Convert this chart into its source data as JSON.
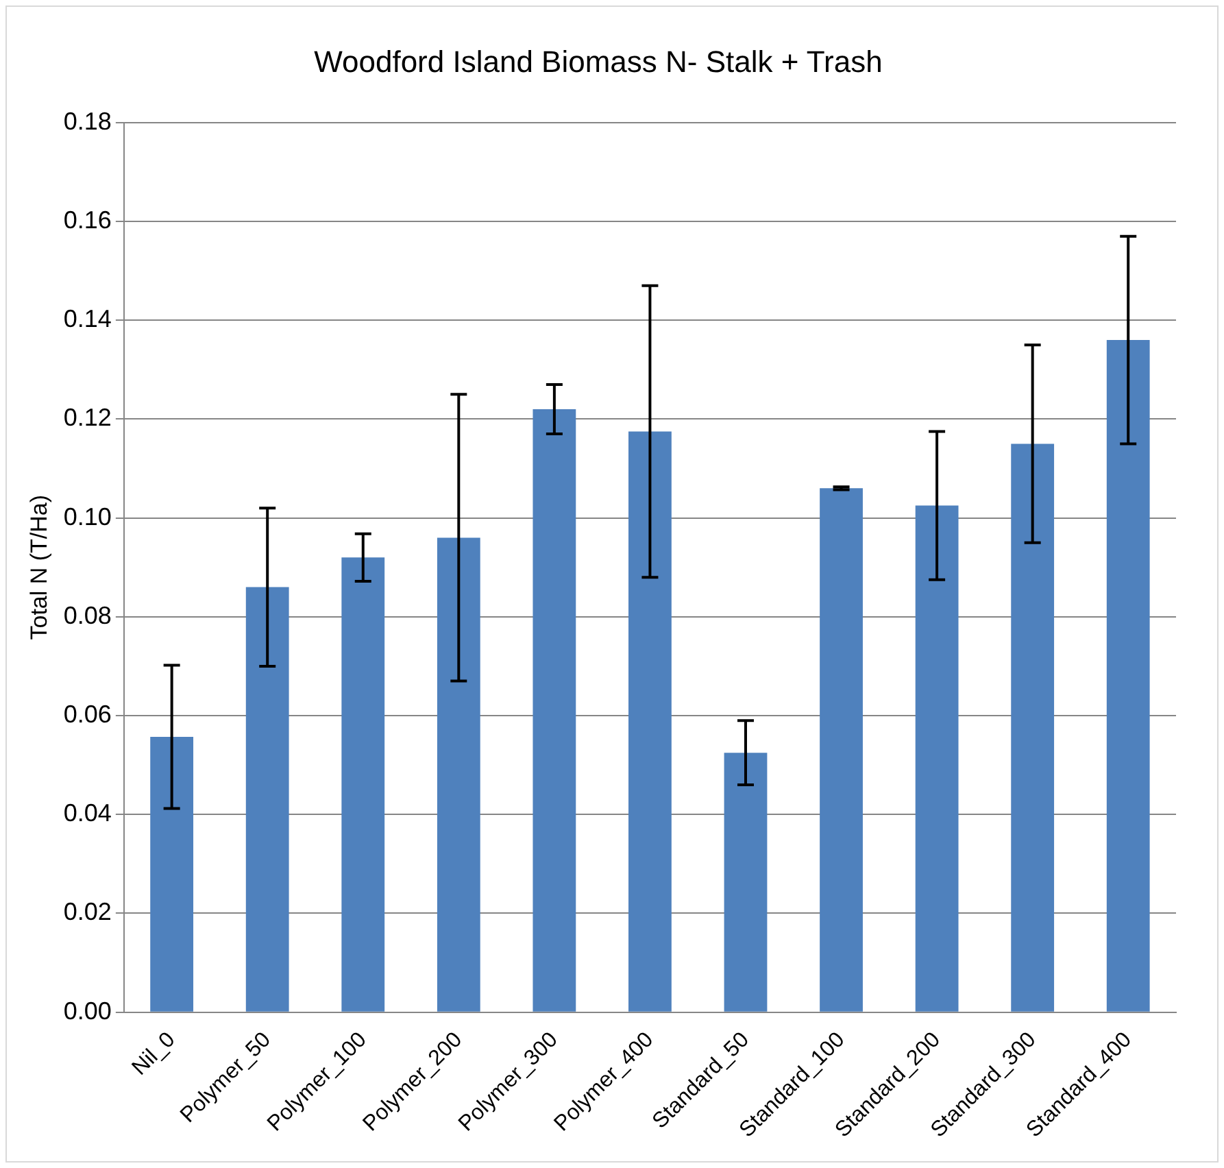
{
  "chart_data": {
    "type": "bar",
    "title": "Woodford Island Biomass N- Stalk + Trash",
    "ylabel": "Total N (T/Ha)",
    "categories": [
      "Nil_0",
      "Polymer_50",
      "Polymer_100",
      "Polymer_200",
      "Polymer_300",
      "Polymer_400",
      "Standard_50",
      "Standard_100",
      "Standard_200",
      "Standard_300",
      "Standard_400"
    ],
    "values": [
      0.0557,
      0.086,
      0.092,
      0.096,
      0.122,
      0.1175,
      0.0525,
      0.106,
      0.1025,
      0.115,
      0.136
    ],
    "errors": [
      0.0145,
      0.016,
      0.0048,
      0.029,
      0.005,
      0.0295,
      0.0065,
      0.0003,
      0.015,
      0.02,
      0.021
    ],
    "color": "#4f81bd",
    "ylim": [
      0,
      0.18
    ],
    "yticks": [
      {
        "value": 0,
        "label": "0.00"
      },
      {
        "value": 0.02,
        "label": "0.02"
      },
      {
        "value": 0.04,
        "label": "0.04"
      },
      {
        "value": 0.06,
        "label": "0.06"
      },
      {
        "value": 0.08,
        "label": "0.08"
      },
      {
        "value": 0.1,
        "label": "0.10"
      },
      {
        "value": 0.12,
        "label": "0.12"
      },
      {
        "value": 0.14,
        "label": "0.14"
      },
      {
        "value": 0.16,
        "label": "0.16"
      },
      {
        "value": 0.18,
        "label": "0.18"
      }
    ],
    "grid": "y",
    "legend": false
  }
}
